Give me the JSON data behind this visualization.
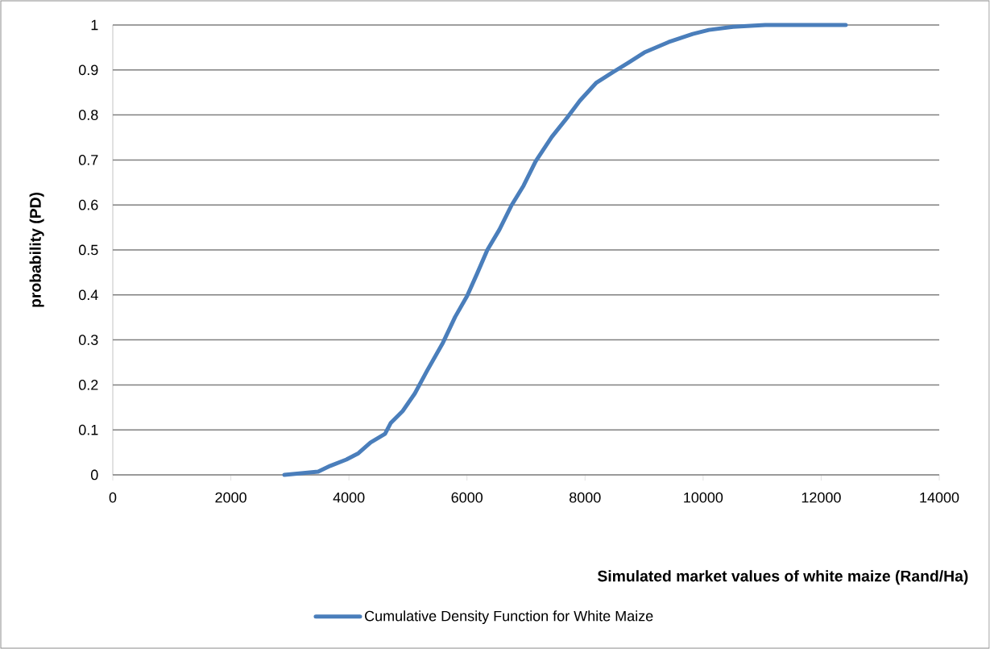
{
  "chart_data": {
    "type": "line",
    "xlabel": "Simulated market values of white maize (Rand/Ha)",
    "ylabel": "probability (PD)",
    "series": [
      {
        "name": "Cumulative Density Function for White Maize",
        "color": "#4a7ebb",
        "x": [
          2906,
          3479,
          3684,
          3957,
          4161,
          4366,
          4612,
          4707,
          4912,
          5117,
          5322,
          5594,
          5799,
          6003,
          6167,
          6345,
          6549,
          6754,
          6959,
          7163,
          7436,
          7709,
          7914,
          8186,
          8459,
          8732,
          9005,
          9415,
          9824,
          10097,
          10506,
          11052,
          12416
        ],
        "values": [
          0,
          0.007,
          0.02,
          0.034,
          0.048,
          0.072,
          0.091,
          0.115,
          0.142,
          0.181,
          0.231,
          0.294,
          0.351,
          0.398,
          0.446,
          0.5,
          0.545,
          0.599,
          0.643,
          0.697,
          0.751,
          0.796,
          0.832,
          0.871,
          0.894,
          0.916,
          0.939,
          0.962,
          0.98,
          0.989,
          0.996,
          1.0,
          1.0
        ]
      }
    ],
    "xlim": [
      0,
      14000
    ],
    "ylim": [
      0,
      1
    ],
    "xticks": [
      0,
      2000,
      4000,
      6000,
      8000,
      10000,
      12000,
      14000
    ],
    "yticks": [
      0,
      0.1,
      0.2,
      0.3,
      0.4,
      0.5,
      0.6,
      0.7,
      0.8,
      0.9,
      1
    ],
    "grid": "y",
    "legend": "bottom",
    "marker": "none",
    "line_style": "solid"
  }
}
